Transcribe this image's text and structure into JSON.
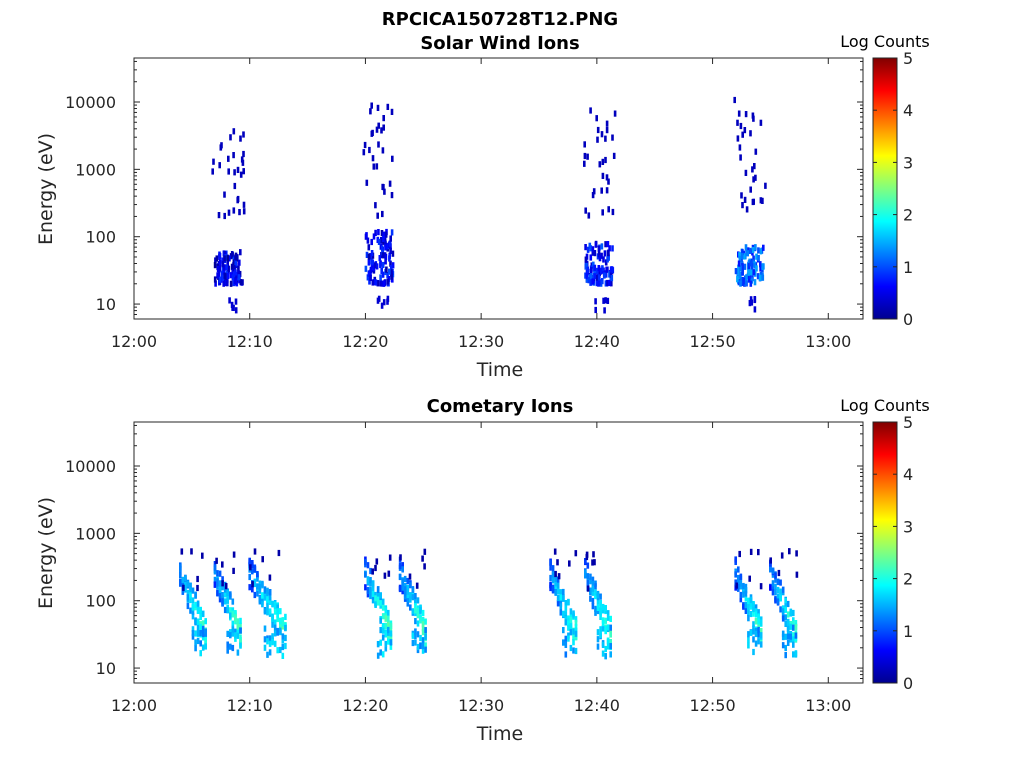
{
  "figure": {
    "title": "RPCICA150728T12.PNG"
  },
  "chart_data": [
    {
      "type": "heatmap",
      "title": "Solar Wind Ions",
      "xlabel": "Time",
      "ylabel": "Energy (eV)",
      "x_ticks": [
        "12:00",
        "12:10",
        "12:20",
        "12:30",
        "12:40",
        "12:50",
        "13:00"
      ],
      "x_range": [
        "12:00",
        "13:03"
      ],
      "y_scale": "log",
      "y_ticks": [
        "10",
        "100",
        "1000",
        "10000"
      ],
      "y_range": [
        6,
        45000
      ],
      "colorbar": {
        "label": "Log Counts",
        "ticks": [
          "0",
          "1",
          "2",
          "3",
          "4",
          "5"
        ],
        "range": [
          0,
          5
        ]
      },
      "bursts": [
        {
          "center": "12:08",
          "core_energy_eV": [
            20,
            60
          ],
          "core_log_counts": 0.5,
          "max_energy_eV": 6000
        },
        {
          "center": "12:21",
          "core_energy_eV": [
            20,
            120
          ],
          "core_log_counts": 0.6,
          "max_energy_eV": 9000
        },
        {
          "center": "12:40",
          "core_energy_eV": [
            20,
            80
          ],
          "core_log_counts": 0.7,
          "max_energy_eV": 7500
        },
        {
          "center": "12:53",
          "core_energy_eV": [
            20,
            70
          ],
          "core_log_counts": 1.1,
          "max_energy_eV": 11000
        }
      ]
    },
    {
      "type": "heatmap",
      "title": "Cometary Ions",
      "xlabel": "Time",
      "ylabel": "Energy (eV)",
      "x_ticks": [
        "12:00",
        "12:10",
        "12:20",
        "12:30",
        "12:40",
        "12:50",
        "13:00"
      ],
      "x_range": [
        "12:00",
        "13:03"
      ],
      "y_scale": "log",
      "y_ticks": [
        "10",
        "100",
        "1000",
        "10000"
      ],
      "y_range": [
        6,
        45000
      ],
      "colorbar": {
        "label": "Log Counts",
        "ticks": [
          "0",
          "1",
          "2",
          "3",
          "4",
          "5"
        ],
        "range": [
          0,
          5
        ]
      },
      "bursts": [
        {
          "start": "12:04",
          "end": "12:06",
          "peak_log_counts": 2.5
        },
        {
          "start": "12:07",
          "end": "12:09",
          "peak_log_counts": 2.5
        },
        {
          "start": "12:10",
          "end": "12:13",
          "peak_log_counts": 2.5
        },
        {
          "start": "12:20",
          "end": "12:22",
          "peak_log_counts": 2.6
        },
        {
          "start": "12:23",
          "end": "12:25",
          "peak_log_counts": 2.5
        },
        {
          "start": "12:36",
          "end": "12:38",
          "peak_log_counts": 2.5
        },
        {
          "start": "12:39",
          "end": "12:41",
          "peak_log_counts": 2.5
        },
        {
          "start": "12:52",
          "end": "12:54",
          "peak_log_counts": 2.4
        },
        {
          "start": "12:55",
          "end": "12:57",
          "peak_log_counts": 2.4
        }
      ]
    }
  ]
}
